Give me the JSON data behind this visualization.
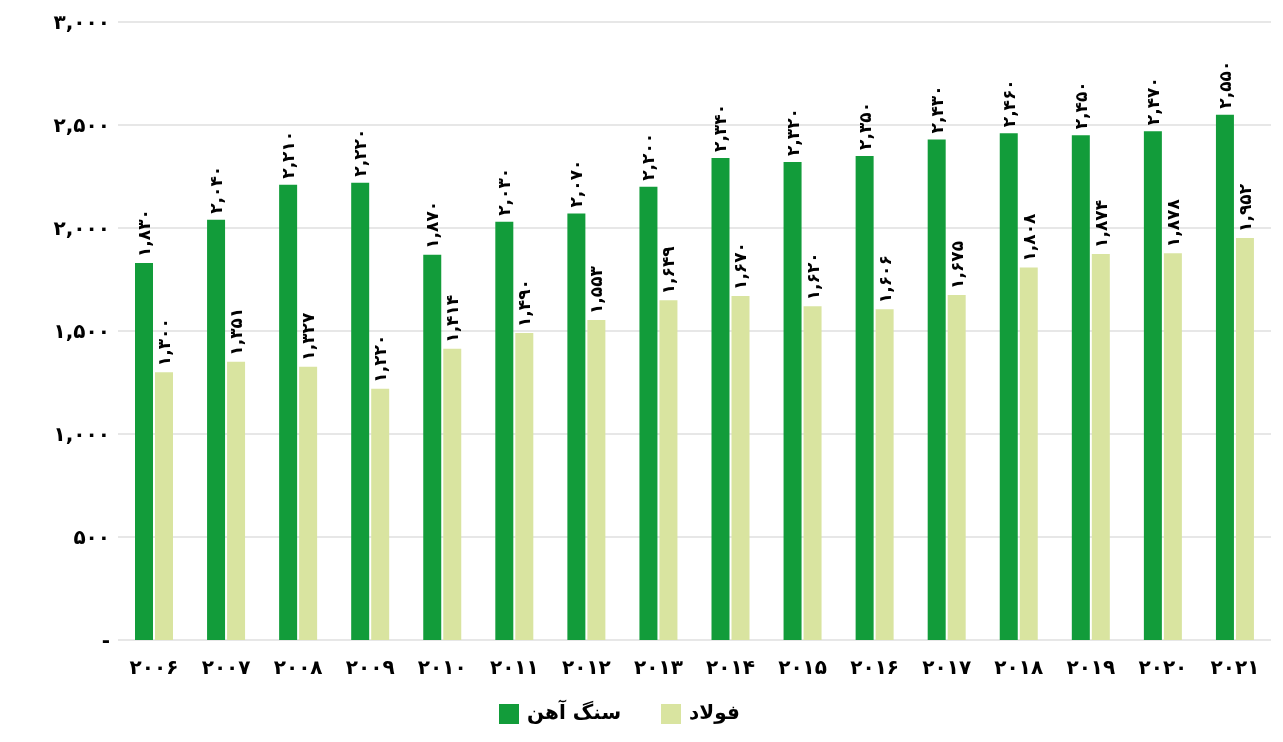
{
  "chart_data": {
    "type": "bar",
    "categories": [
      "۲۰۰۶",
      "۲۰۰۷",
      "۲۰۰۸",
      "۲۰۰۹",
      "۲۰۱۰",
      "۲۰۱۱",
      "۲۰۱۲",
      "۲۰۱۳",
      "۲۰۱۴",
      "۲۰۱۵",
      "۲۰۱۶",
      "۲۰۱۷",
      "۲۰۱۸",
      "۲۰۱۹",
      "۲۰۲۰",
      "۲۰۲۱"
    ],
    "series": [
      {
        "name": "سنگ آهن",
        "color": "#129c3a",
        "values": [
          1830,
          2040,
          2210,
          2220,
          1870,
          2030,
          2070,
          2200,
          2340,
          2320,
          2350,
          2430,
          2460,
          2450,
          2470,
          2550
        ],
        "value_labels": [
          "۱,۸۳۰",
          "۲,۰۴۰",
          "۲,۲۱۰",
          "۲,۲۲۰",
          "۱,۸۷۰",
          "۲,۰۳۰",
          "۲,۰۷۰",
          "۲,۲۰۰",
          "۲,۳۴۰",
          "۲,۳۲۰",
          "۲,۳۵۰",
          "۲,۴۳۰",
          "۲,۴۶۰",
          "۲,۴۵۰",
          "۲,۴۷۰",
          "۲,۵۵۰"
        ]
      },
      {
        "name": "فولاد",
        "color": "#d9e4a0",
        "values": [
          1300,
          1351,
          1327,
          1220,
          1414,
          1490,
          1553,
          1649,
          1670,
          1620,
          1606,
          1675,
          1808,
          1874,
          1878,
          1952
        ],
        "value_labels": [
          "۱,۳۰۰",
          "۱,۳۵۱",
          "۱,۳۲۷",
          "۱,۲۲۰",
          "۱,۴۱۴",
          "۱,۴۹۰",
          "۱,۵۵۳",
          "۱,۶۴۹",
          "۱,۶۷۰",
          "۱,۶۲۰",
          "۱,۶۰۶",
          "۱,۶۷۵",
          "۱,۸۰۸",
          "۱,۸۷۴",
          "۱,۸۷۸",
          "۱,۹۵۲"
        ]
      }
    ],
    "ylim": [
      0,
      3000
    ],
    "yticks": [
      {
        "value": 0,
        "label": "-"
      },
      {
        "value": 500,
        "label": "۵۰۰"
      },
      {
        "value": 1000,
        "label": "۱,۰۰۰"
      },
      {
        "value": 1500,
        "label": "۱,۵۰۰"
      },
      {
        "value": 2000,
        "label": "۲,۰۰۰"
      },
      {
        "value": 2500,
        "label": "۲,۵۰۰"
      },
      {
        "value": 3000,
        "label": "۳,۰۰۰"
      }
    ],
    "grid": "y",
    "legend": "bottom"
  }
}
